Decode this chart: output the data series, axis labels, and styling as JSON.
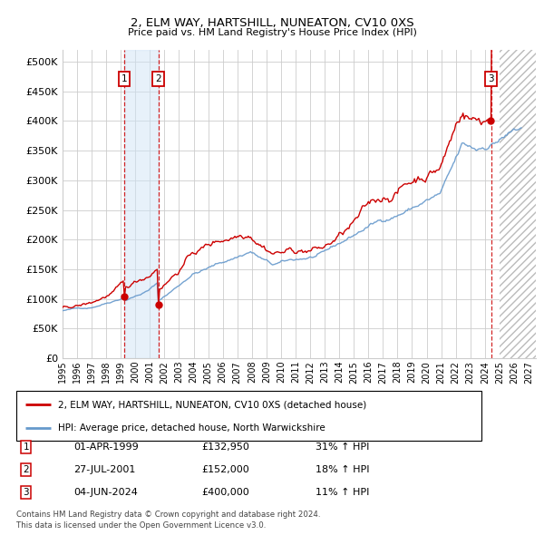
{
  "title": "2, ELM WAY, HARTSHILL, NUNEATON, CV10 0XS",
  "subtitle": "Price paid vs. HM Land Registry's House Price Index (HPI)",
  "xlim_start": 1995.0,
  "xlim_end": 2027.5,
  "ylim": [
    0,
    520000
  ],
  "yticks": [
    0,
    50000,
    100000,
    150000,
    200000,
    250000,
    300000,
    350000,
    400000,
    450000,
    500000
  ],
  "ytick_labels": [
    "£0",
    "£50K",
    "£100K",
    "£150K",
    "£200K",
    "£250K",
    "£300K",
    "£350K",
    "£400K",
    "£450K",
    "£500K"
  ],
  "transactions": [
    {
      "num": 1,
      "date": "01-APR-1999",
      "price": 132950,
      "pct": "31%",
      "dir": "↑",
      "year": 1999.25
    },
    {
      "num": 2,
      "date": "27-JUL-2001",
      "price": 152000,
      "pct": "18%",
      "dir": "↑",
      "year": 2001.57
    },
    {
      "num": 3,
      "date": "04-JUN-2024",
      "price": 400000,
      "pct": "11%",
      "dir": "↑",
      "year": 2024.42
    }
  ],
  "legend_line1": "2, ELM WAY, HARTSHILL, NUNEATON, CV10 0XS (detached house)",
  "legend_line2": "HPI: Average price, detached house, North Warwickshire",
  "footer1": "Contains HM Land Registry data © Crown copyright and database right 2024.",
  "footer2": "This data is licensed under the Open Government Licence v3.0.",
  "red_color": "#cc0000",
  "blue_color": "#6699cc",
  "blue_shade": "#d0e4f7",
  "bg_color": "#ffffff",
  "grid_color": "#cccccc",
  "hatch_start": 2025.0,
  "shade_x0": 1999.25,
  "shade_x1": 2001.57
}
